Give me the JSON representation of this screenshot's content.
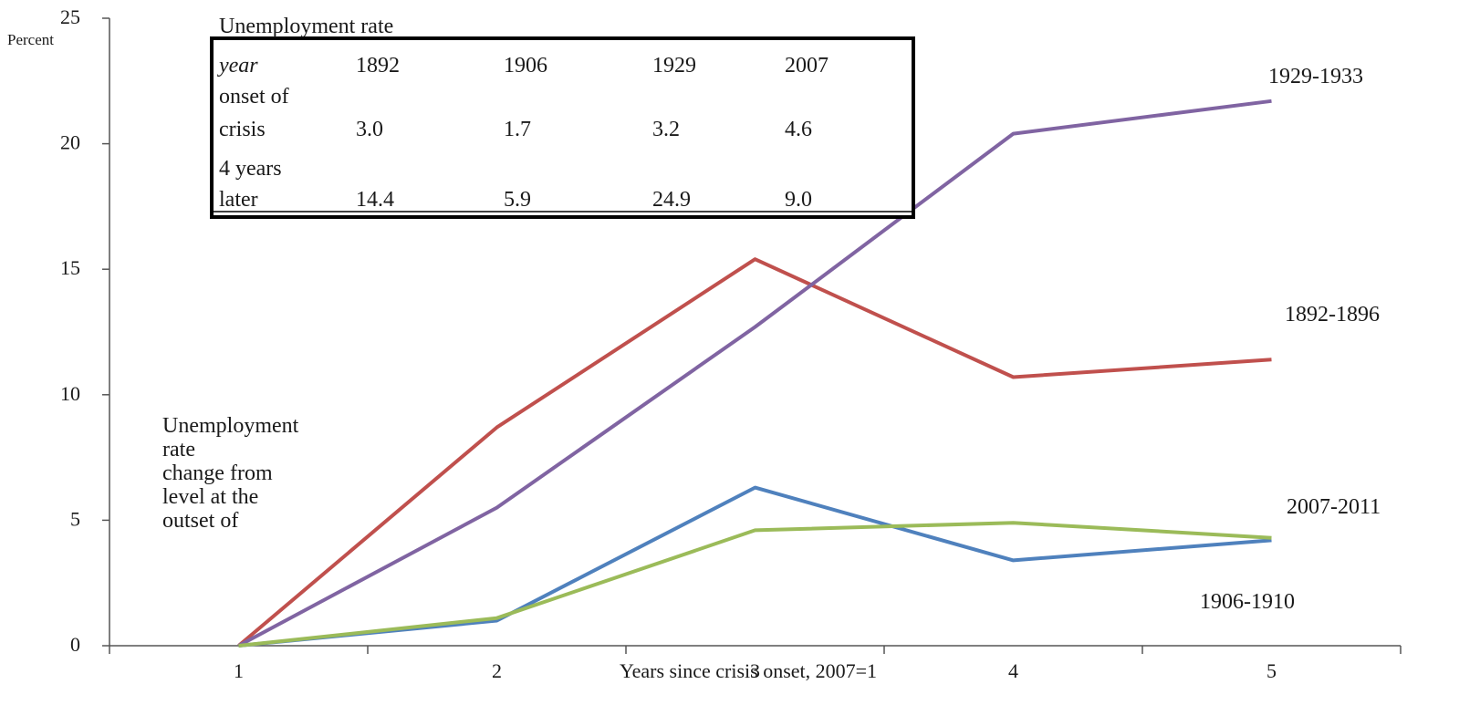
{
  "chart_data": {
    "type": "line",
    "ylabel_unit": "Percent",
    "xlabel": "Years since crisis onset, 2007=1",
    "x": [
      1,
      2,
      3,
      4,
      5
    ],
    "ylim": [
      0,
      25
    ],
    "yticks": [
      0,
      5,
      10,
      15,
      20,
      25
    ],
    "xticks": [
      1,
      2,
      3,
      4,
      5
    ],
    "grid": false,
    "series": [
      {
        "name": "1892-1896",
        "color": "#c0504d",
        "values": [
          0,
          8.7,
          15.4,
          10.7,
          11.4
        ]
      },
      {
        "name": "1906-1910",
        "color": "#4f81bd",
        "values": [
          0,
          1.0,
          6.3,
          3.4,
          4.2
        ]
      },
      {
        "name": "1929-1933",
        "color": "#8064a2",
        "values": [
          0,
          5.5,
          12.7,
          20.4,
          21.7
        ]
      },
      {
        "name": "2007-2011",
        "color": "#9bbb59",
        "values": [
          0,
          1.1,
          4.6,
          4.9,
          4.3
        ]
      }
    ],
    "annotation_lines": [
      "Unemployment",
      "rate",
      "change from",
      "level at the",
      "outset  of"
    ],
    "inset_table": {
      "title": "Unemployment rate",
      "rows": [
        [
          "year",
          "1892",
          "1906",
          "1929",
          "2007"
        ],
        [
          "onset of",
          "",
          "",
          "",
          ""
        ],
        [
          "crisis",
          "3.0",
          "1.7",
          "3.2",
          "4.6"
        ],
        [
          "4 years",
          "",
          "",
          "",
          ""
        ],
        [
          "later",
          "14.4",
          "5.9",
          "24.9",
          "9.0"
        ]
      ]
    }
  }
}
